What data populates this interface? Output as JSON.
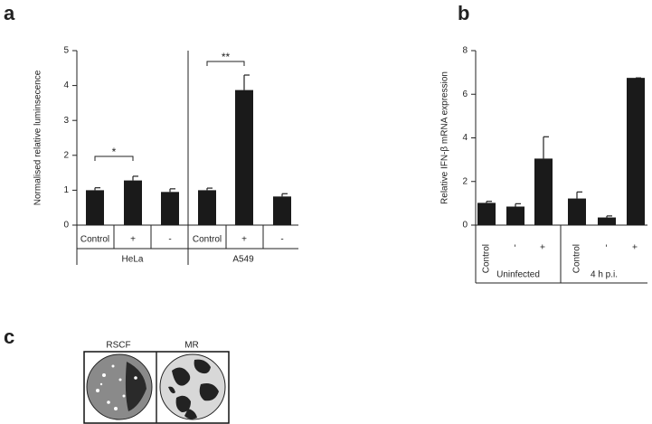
{
  "panel_letters": [
    "a",
    "b",
    "c"
  ],
  "chart_data": [
    {
      "type": "bar",
      "y_label": "Normalised relative luminsecence",
      "categories": [
        "Control",
        "+",
        "-",
        "Control",
        "+",
        "-"
      ],
      "groups": [
        "HeLa",
        "A549"
      ],
      "values": [
        1.0,
        1.28,
        0.95,
        1.0,
        3.87,
        0.82
      ],
      "errors": [
        0.07,
        0.12,
        0.09,
        0.06,
        0.43,
        0.08
      ],
      "color": "#1a1a1a",
      "ylim": [
        0,
        5
      ],
      "yticks": [
        0,
        1,
        2,
        3,
        4,
        5
      ],
      "annotations": [
        "*",
        "**"
      ]
    },
    {
      "type": "bar",
      "y_label": "Relative IFN-β mRNA expression",
      "categories": [
        "Control",
        "-",
        "+",
        "Control",
        "-",
        "+"
      ],
      "groups": [
        "Uninfected",
        "4 h p.i."
      ],
      "values": [
        1.02,
        0.85,
        3.05,
        1.22,
        0.35,
        6.75
      ],
      "errors": [
        0.07,
        0.13,
        1.0,
        0.3,
        0.07,
        0
      ],
      "color": "#1a1a1a",
      "ylim": [
        0,
        8
      ],
      "yticks": [
        0,
        2,
        4,
        6,
        8
      ]
    }
  ],
  "image_panel": {
    "labels": [
      "RSCF",
      "MR"
    ]
  }
}
